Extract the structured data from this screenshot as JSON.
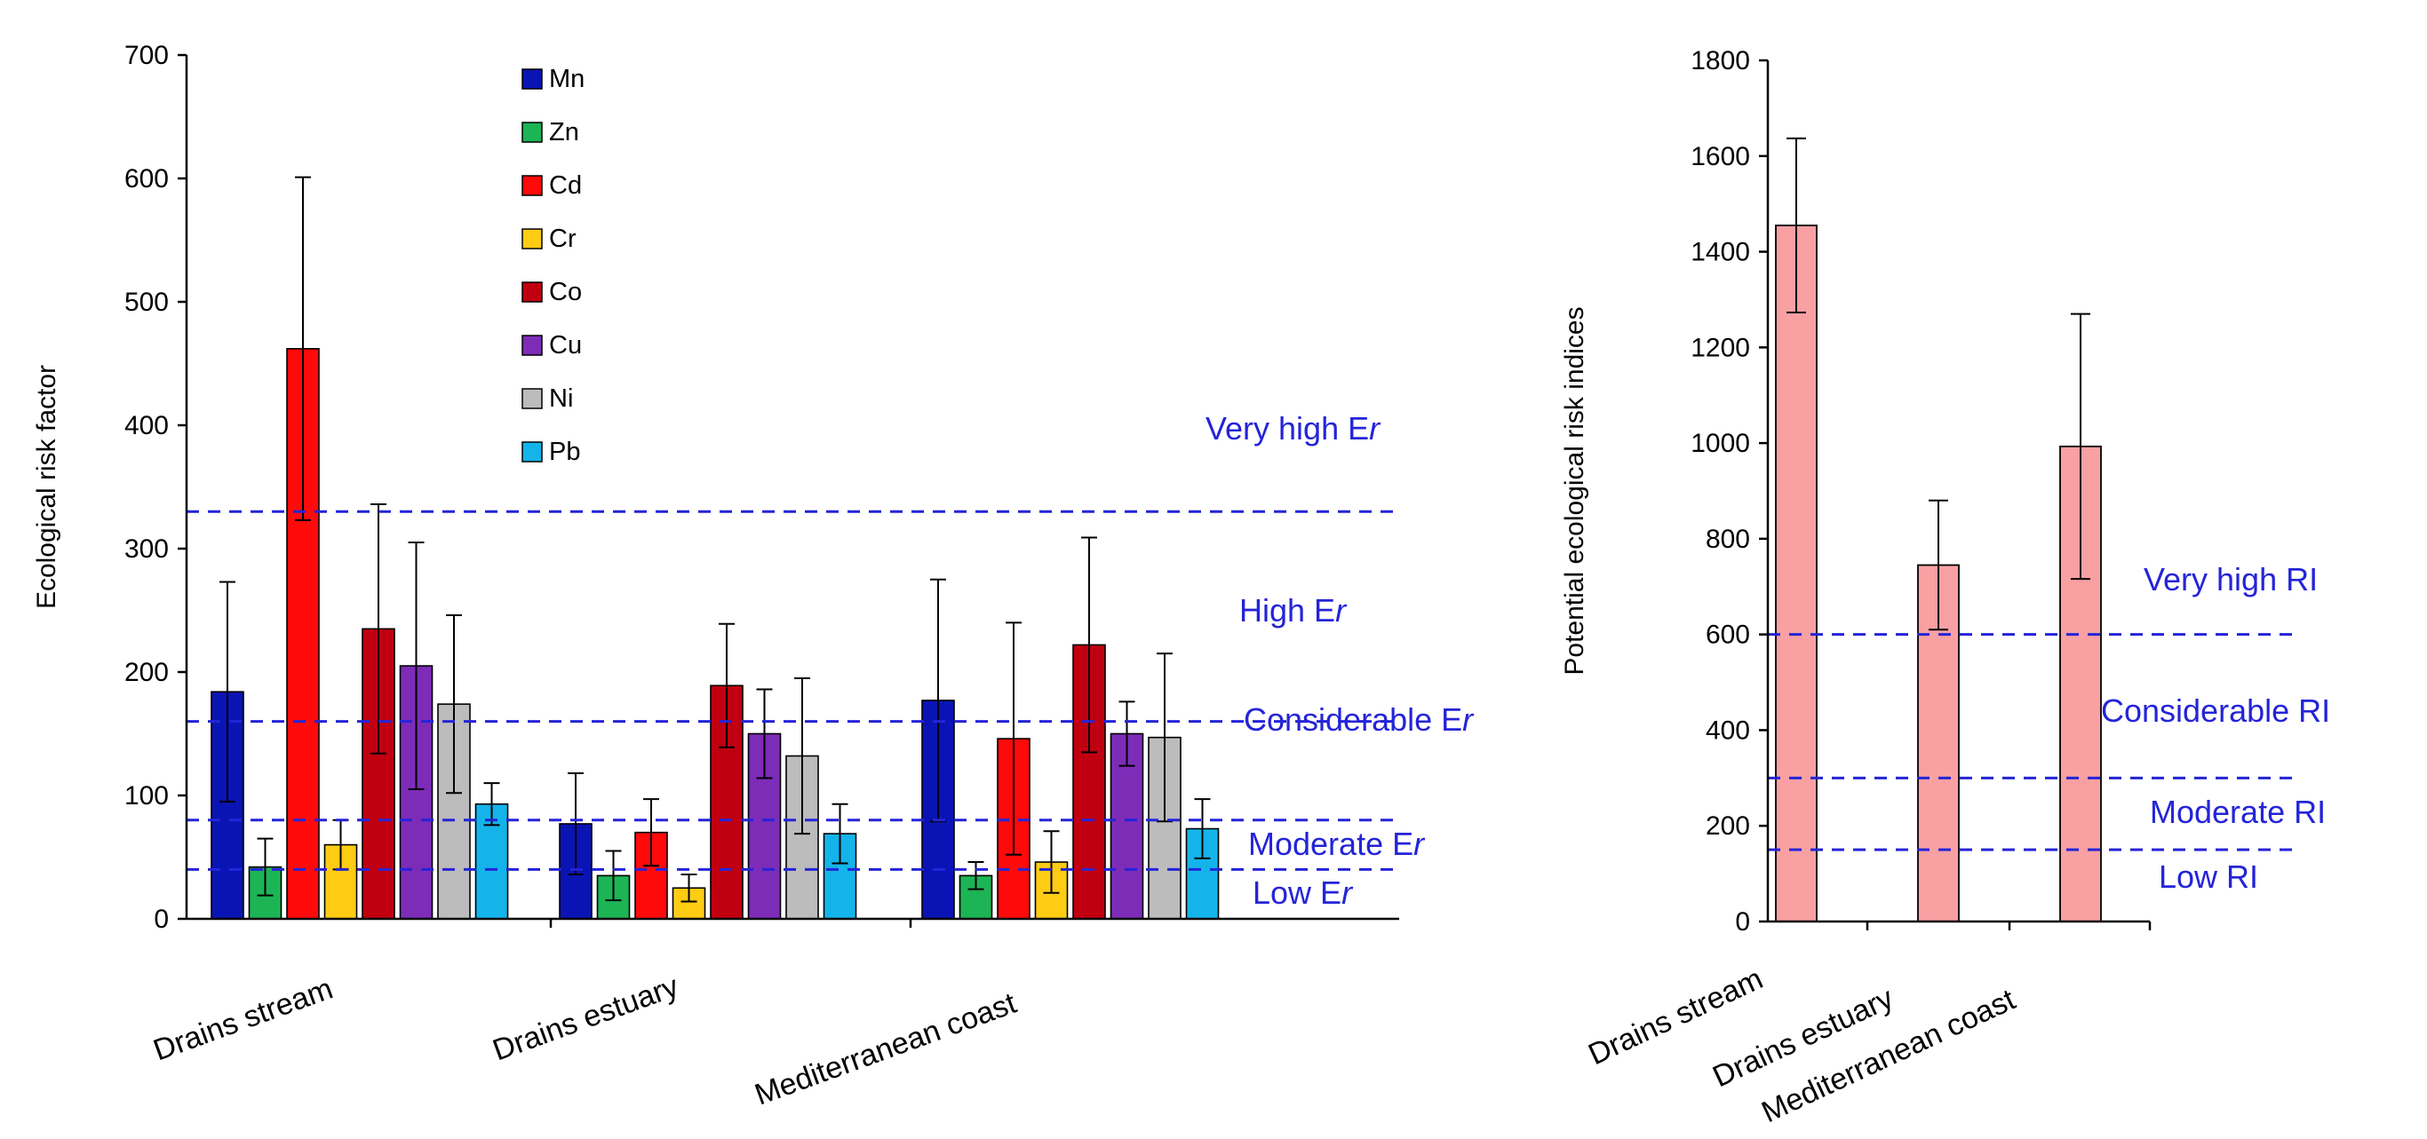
{
  "chart_data": [
    {
      "type": "bar",
      "title": "",
      "xlabel": "",
      "ylabel": "Ecological risk factor",
      "ylim": [
        0,
        700
      ],
      "yticks": [
        0,
        100,
        200,
        300,
        400,
        500,
        600,
        700
      ],
      "grid": false,
      "legend_position": "top-center",
      "categories": [
        "Drains stream",
        "Drains estuary",
        "Mediterranean coast"
      ],
      "series": [
        {
          "name": "Mn",
          "color": "#0a14b4",
          "values": [
            184,
            77,
            177
          ],
          "errors": [
            89,
            41,
            98
          ]
        },
        {
          "name": "Zn",
          "color": "#1db455",
          "values": [
            42,
            35,
            35
          ],
          "errors": [
            23,
            20,
            11
          ]
        },
        {
          "name": "Cd",
          "color": "#ff0a0a",
          "values": [
            462,
            70,
            146
          ],
          "errors": [
            139,
            27,
            94
          ]
        },
        {
          "name": "Cr",
          "color": "#ffcc14",
          "values": [
            60,
            25,
            46
          ],
          "errors": [
            20,
            11,
            25
          ]
        },
        {
          "name": "Co",
          "color": "#c00010",
          "values": [
            235,
            189,
            222
          ],
          "errors": [
            101,
            50,
            87
          ]
        },
        {
          "name": "Cu",
          "color": "#7d2cb8",
          "values": [
            205,
            150,
            150
          ],
          "errors": [
            100,
            36,
            26
          ]
        },
        {
          "name": "Ni",
          "color": "#bcbcbc",
          "values": [
            174,
            132,
            147
          ],
          "errors": [
            72,
            63,
            68
          ]
        },
        {
          "name": "Pb",
          "color": "#14b4ea",
          "values": [
            93,
            69,
            73
          ],
          "errors": [
            17,
            24,
            24
          ]
        }
      ],
      "legend": [
        "Mn",
        "Zn",
        "Cd",
        "Cr",
        "Co",
        "Cu",
        "Ni",
        "Pb"
      ],
      "thresholds": [
        {
          "value": 330,
          "label": "Very high E",
          "label_italic": "r"
        },
        {
          "value": 160,
          "label": "High E",
          "label_italic": "r"
        },
        {
          "value": 80,
          "label": "Considerable E",
          "label_italic": "r"
        },
        {
          "value": 40,
          "label": "Moderate E",
          "label_italic": "r"
        },
        {
          "value": 0,
          "label": "Low E",
          "label_italic": "r"
        }
      ],
      "threshold_color": "#2424d8"
    },
    {
      "type": "bar",
      "title": "",
      "xlabel": "",
      "ylabel": "Potential ecological risk indices",
      "ylim": [
        0,
        1800
      ],
      "yticks": [
        0,
        200,
        400,
        600,
        800,
        1000,
        1200,
        1400,
        1600,
        1800
      ],
      "grid": false,
      "categories": [
        "Drains stream",
        "Drains estuary",
        "Mediterranean coast"
      ],
      "values": [
        1455,
        745,
        993
      ],
      "errors": [
        182,
        135,
        277
      ],
      "bar_color": "#f9a0a3",
      "thresholds": [
        {
          "value": 600,
          "label": "Very high RI"
        },
        {
          "value": 300,
          "label": "Considerable RI"
        },
        {
          "value": 150,
          "label": "Moderate RI"
        },
        {
          "value": 0,
          "label": "Low RI"
        }
      ],
      "threshold_color": "#2424d8"
    }
  ]
}
